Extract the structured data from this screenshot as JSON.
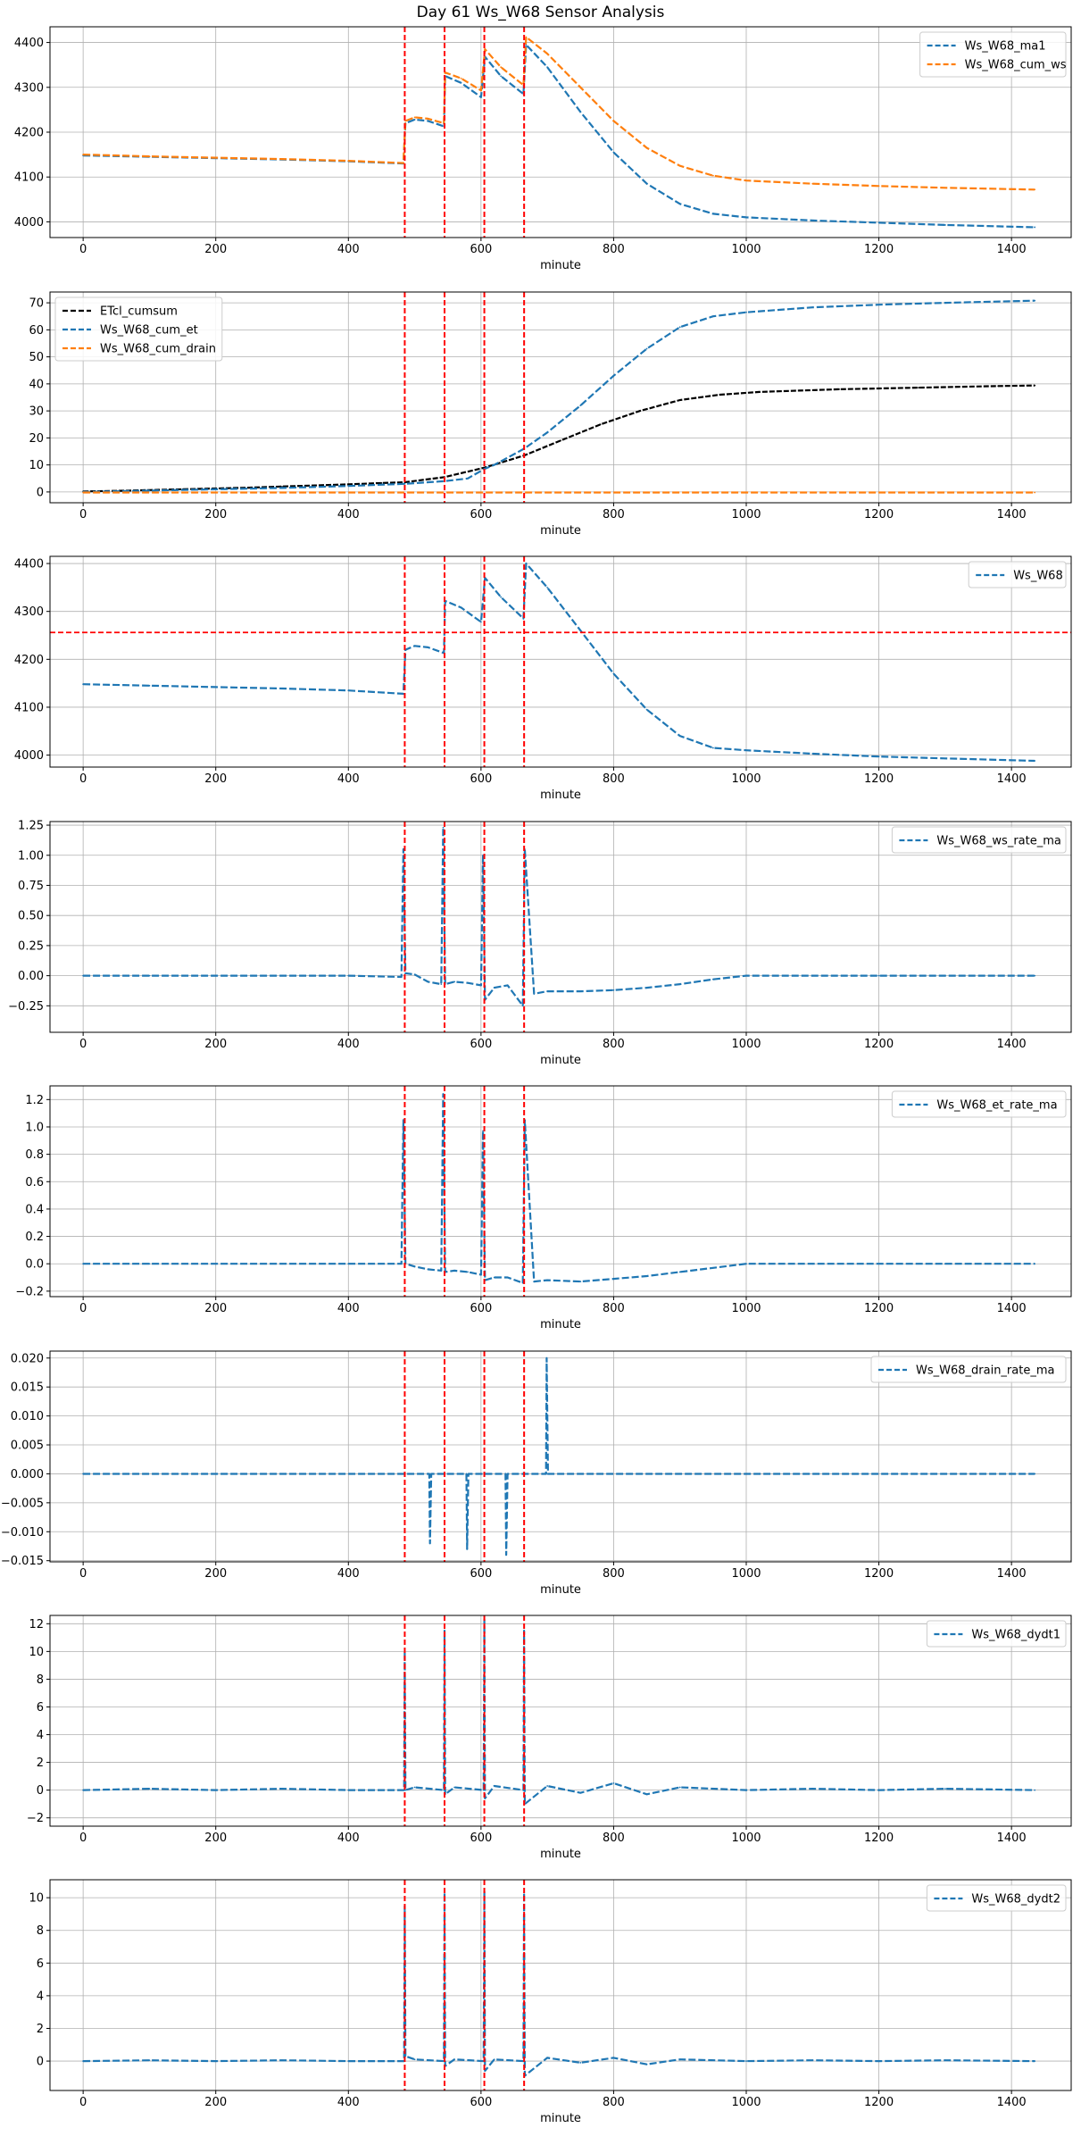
{
  "title": "Day 61 Ws_W68 Sensor Analysis",
  "colors": {
    "blue": "#1f77b4",
    "orange": "#ff7f0e",
    "black": "#000000",
    "event": "#ff0000",
    "grid": "#b0b0b0"
  },
  "chart_data": [
    {
      "type": "line",
      "xlabel": "minute",
      "xlim": [
        -50,
        1490
      ],
      "ylim": [
        3965,
        4435
      ],
      "xticks": [
        0,
        200,
        400,
        600,
        800,
        1000,
        1200,
        1400
      ],
      "yticks": [
        4000,
        4100,
        4200,
        4300,
        4400
      ],
      "ytick_labels": [
        "4000",
        "4100",
        "4200",
        "4300",
        "4400"
      ],
      "legend_position": "top-right",
      "grid": true,
      "event_lines": [
        485,
        545,
        605,
        665
      ],
      "series": [
        {
          "name": "Ws_W68_ma1",
          "color": "#1f77b4",
          "x": [
            0,
            100,
            200,
            300,
            400,
            483,
            486,
            500,
            520,
            544,
            546,
            570,
            600,
            606,
            630,
            664,
            668,
            700,
            750,
            800,
            850,
            900,
            950,
            1000,
            1100,
            1200,
            1300,
            1435
          ],
          "y": [
            4148,
            4145,
            4142,
            4139,
            4135,
            4130,
            4220,
            4228,
            4225,
            4213,
            4325,
            4310,
            4278,
            4368,
            4325,
            4285,
            4395,
            4345,
            4245,
            4155,
            4085,
            4040,
            4018,
            4010,
            4003,
            3998,
            3993,
            3988
          ]
        },
        {
          "name": "Ws_W68_cum_ws",
          "color": "#ff7f0e",
          "x": [
            0,
            100,
            200,
            300,
            400,
            483,
            486,
            500,
            520,
            544,
            546,
            570,
            600,
            606,
            630,
            664,
            668,
            700,
            750,
            800,
            850,
            900,
            950,
            1000,
            1100,
            1200,
            1300,
            1435
          ],
          "y": [
            4150,
            4146,
            4143,
            4140,
            4136,
            4131,
            4225,
            4233,
            4230,
            4220,
            4333,
            4320,
            4293,
            4385,
            4345,
            4305,
            4412,
            4375,
            4300,
            4225,
            4165,
            4125,
            4103,
            4092,
            4085,
            4080,
            4076,
            4072
          ]
        }
      ]
    },
    {
      "type": "line",
      "xlabel": "minute",
      "xlim": [
        -50,
        1490
      ],
      "ylim": [
        -4,
        74
      ],
      "xticks": [
        0,
        200,
        400,
        600,
        800,
        1000,
        1200,
        1400
      ],
      "yticks": [
        0,
        10,
        20,
        30,
        40,
        50,
        60,
        70
      ],
      "ytick_labels": [
        "0",
        "10",
        "20",
        "30",
        "40",
        "50",
        "60",
        "70"
      ],
      "legend_position": "top-left",
      "grid": true,
      "event_lines": [
        485,
        545,
        605,
        665
      ],
      "series": [
        {
          "name": "ETcl_cumsum",
          "color": "#000000",
          "x": [
            0,
            50,
            100,
            150,
            200,
            250,
            300,
            350,
            400,
            450,
            485,
            545,
            605,
            665,
            720,
            780,
            840,
            900,
            960,
            1020,
            1080,
            1140,
            1200,
            1260,
            1320,
            1380,
            1435
          ],
          "y": [
            0.2,
            0.4,
            0.7,
            1.0,
            1.3,
            1.6,
            2.0,
            2.4,
            2.8,
            3.3,
            3.6,
            5.5,
            9,
            13.5,
            19,
            25,
            30,
            34,
            36,
            37,
            37.5,
            38,
            38.3,
            38.6,
            38.9,
            39.2,
            39.4
          ]
        },
        {
          "name": "Ws_W68_cum_et",
          "color": "#1f77b4",
          "x": [
            0,
            100,
            200,
            300,
            400,
            485,
            545,
            580,
            605,
            620,
            665,
            700,
            750,
            800,
            850,
            900,
            950,
            1000,
            1100,
            1200,
            1300,
            1435
          ],
          "y": [
            0,
            0.5,
            1.0,
            1.5,
            2.2,
            3.0,
            4.0,
            5.0,
            8.5,
            10,
            16,
            22,
            32,
            43,
            53,
            61,
            65,
            66.5,
            68.3,
            69.3,
            70,
            70.8
          ]
        },
        {
          "name": "Ws_W68_cum_drain",
          "color": "#ff7f0e",
          "x": [
            0,
            1435
          ],
          "y": [
            -0.2,
            -0.2
          ]
        }
      ]
    },
    {
      "type": "line",
      "xlabel": "minute",
      "xlim": [
        -50,
        1490
      ],
      "ylim": [
        3975,
        4415
      ],
      "xticks": [
        0,
        200,
        400,
        600,
        800,
        1000,
        1200,
        1400
      ],
      "yticks": [
        4000,
        4100,
        4200,
        4300,
        4400
      ],
      "ytick_labels": [
        "4000",
        "4100",
        "4200",
        "4300",
        "4400"
      ],
      "legend_position": "top-right",
      "grid": true,
      "event_lines": [
        485,
        545,
        605,
        665
      ],
      "threshold": 4256,
      "series": [
        {
          "name": "Ws_W68",
          "color": "#1f77b4",
          "x": [
            0,
            100,
            200,
            300,
            400,
            483,
            486,
            500,
            520,
            544,
            546,
            570,
            600,
            606,
            630,
            664,
            668,
            700,
            750,
            800,
            850,
            900,
            950,
            1000,
            1100,
            1200,
            1300,
            1435
          ],
          "y": [
            4148,
            4145,
            4142,
            4139,
            4135,
            4128,
            4220,
            4228,
            4225,
            4213,
            4322,
            4308,
            4278,
            4370,
            4330,
            4285,
            4400,
            4350,
            4260,
            4170,
            4095,
            4040,
            4015,
            4010,
            4003,
            3997,
            3993,
            3988
          ]
        }
      ]
    },
    {
      "type": "line",
      "xlabel": "minute",
      "xlim": [
        -50,
        1490
      ],
      "ylim": [
        -0.47,
        1.28
      ],
      "xticks": [
        0,
        200,
        400,
        600,
        800,
        1000,
        1200,
        1400
      ],
      "yticks": [
        -0.25,
        0.0,
        0.25,
        0.5,
        0.75,
        1.0,
        1.25
      ],
      "ytick_labels": [
        "−0.25",
        "0.00",
        "0.25",
        "0.50",
        "0.75",
        "1.00",
        "1.25"
      ],
      "legend_position": "top-right",
      "grid": true,
      "event_lines": [
        485,
        545,
        605,
        665
      ],
      "series": [
        {
          "name": "Ws_W68_ws_rate_ma",
          "color": "#1f77b4",
          "x": [
            0,
            100,
            200,
            300,
            400,
            480,
            483,
            486,
            500,
            520,
            540,
            543,
            546,
            560,
            580,
            600,
            603,
            606,
            620,
            640,
            663,
            666,
            680,
            700,
            750,
            800,
            850,
            900,
            950,
            1000,
            1100,
            1200,
            1300,
            1435
          ],
          "y": [
            0,
            0,
            0,
            0,
            0,
            -0.01,
            1.05,
            0.02,
            0.01,
            -0.05,
            -0.07,
            1.23,
            -0.07,
            -0.05,
            -0.06,
            -0.08,
            1.0,
            -0.2,
            -0.1,
            -0.08,
            -0.25,
            1.05,
            -0.15,
            -0.13,
            -0.13,
            -0.12,
            -0.1,
            -0.07,
            -0.03,
            0,
            0,
            0,
            0,
            0
          ]
        }
      ]
    },
    {
      "type": "line",
      "xlabel": "minute",
      "xlim": [
        -50,
        1490
      ],
      "ylim": [
        -0.24,
        1.3
      ],
      "xticks": [
        0,
        200,
        400,
        600,
        800,
        1000,
        1200,
        1400
      ],
      "yticks": [
        -0.2,
        0.0,
        0.2,
        0.4,
        0.6,
        0.8,
        1.0,
        1.2
      ],
      "ytick_labels": [
        "−0.2",
        "0.0",
        "0.2",
        "0.4",
        "0.6",
        "0.8",
        "1.0",
        "1.2"
      ],
      "legend_position": "top-right",
      "grid": true,
      "event_lines": [
        485,
        545,
        605,
        665
      ],
      "series": [
        {
          "name": "Ws_W68_et_rate_ma",
          "color": "#1f77b4",
          "x": [
            0,
            100,
            200,
            300,
            400,
            480,
            483,
            486,
            500,
            520,
            540,
            543,
            546,
            560,
            580,
            600,
            603,
            606,
            620,
            640,
            663,
            666,
            680,
            700,
            750,
            800,
            850,
            900,
            950,
            1000,
            1100,
            1200,
            1300,
            1435
          ],
          "y": [
            0,
            0,
            0,
            0,
            0,
            0,
            1.05,
            0,
            -0.02,
            -0.04,
            -0.05,
            1.24,
            -0.06,
            -0.05,
            -0.06,
            -0.08,
            0.97,
            -0.12,
            -0.1,
            -0.1,
            -0.14,
            1.05,
            -0.13,
            -0.12,
            -0.13,
            -0.11,
            -0.09,
            -0.06,
            -0.03,
            0,
            0,
            0,
            0,
            0
          ]
        }
      ]
    },
    {
      "type": "line",
      "xlabel": "minute",
      "xlim": [
        -50,
        1490
      ],
      "ylim": [
        -0.0152,
        0.0212
      ],
      "xticks": [
        0,
        200,
        400,
        600,
        800,
        1000,
        1200,
        1400
      ],
      "yticks": [
        -0.015,
        -0.01,
        -0.005,
        0.0,
        0.005,
        0.01,
        0.015,
        0.02
      ],
      "ytick_labels": [
        "−0.015",
        "−0.010",
        "−0.005",
        "0.000",
        "0.005",
        "0.010",
        "0.015",
        "0.020"
      ],
      "legend_position": "top-right",
      "grid": true,
      "event_lines": [
        485,
        545,
        605,
        665
      ],
      "series": [
        {
          "name": "Ws_W68_drain_rate_ma",
          "color": "#1f77b4",
          "x": [
            0,
            480,
            522,
            523,
            525,
            578,
            579,
            581,
            637,
            638,
            640,
            698,
            699,
            701,
            1435
          ],
          "y": [
            0,
            0,
            0,
            -0.012,
            0,
            0,
            -0.013,
            0,
            0,
            -0.014,
            0,
            0,
            0.02,
            0,
            0
          ]
        }
      ]
    },
    {
      "type": "line",
      "xlabel": "minute",
      "xlim": [
        -50,
        1490
      ],
      "ylim": [
        -2.6,
        12.6
      ],
      "xticks": [
        0,
        200,
        400,
        600,
        800,
        1000,
        1200,
        1400
      ],
      "yticks": [
        -2,
        0,
        2,
        4,
        6,
        8,
        10,
        12
      ],
      "ytick_labels": [
        "−2",
        "0",
        "2",
        "4",
        "6",
        "8",
        "10",
        "12"
      ],
      "legend_position": "top-right",
      "grid": true,
      "event_lines": [
        485,
        545,
        605,
        665
      ],
      "series": [
        {
          "name": "Ws_W68_dydt1",
          "color": "#1f77b4",
          "x": [
            0,
            100,
            200,
            300,
            400,
            484,
            485,
            486,
            500,
            544,
            545,
            546,
            560,
            604,
            605,
            606,
            620,
            664,
            665,
            666,
            700,
            750,
            800,
            850,
            900,
            1000,
            1100,
            1200,
            1300,
            1435
          ],
          "y": [
            0,
            0.1,
            0,
            0.1,
            0,
            0,
            10,
            0,
            0.2,
            0,
            11.5,
            -0.3,
            0.2,
            0,
            12.3,
            -0.6,
            0.3,
            0,
            11.5,
            -1.0,
            0.3,
            -0.2,
            0.5,
            -0.3,
            0.2,
            0,
            0.1,
            0,
            0.1,
            0
          ]
        }
      ]
    },
    {
      "type": "line",
      "xlabel": "minute",
      "xlim": [
        -50,
        1490
      ],
      "ylim": [
        -1.8,
        11.1
      ],
      "xticks": [
        0,
        200,
        400,
        600,
        800,
        1000,
        1200,
        1400
      ],
      "yticks": [
        0,
        2,
        4,
        6,
        8,
        10
      ],
      "ytick_labels": [
        "0",
        "2",
        "4",
        "6",
        "8",
        "10"
      ],
      "legend_position": "top-right",
      "grid": true,
      "event_lines": [
        485,
        545,
        605,
        665
      ],
      "series": [
        {
          "name": "Ws_W68_dydt2",
          "color": "#1f77b4",
          "x": [
            0,
            100,
            200,
            300,
            400,
            484,
            485,
            486,
            500,
            544,
            545,
            546,
            560,
            604,
            605,
            606,
            620,
            664,
            665,
            666,
            700,
            750,
            800,
            850,
            900,
            1000,
            1100,
            1200,
            1300,
            1435
          ],
          "y": [
            0,
            0.05,
            0,
            0.05,
            0,
            0,
            9.5,
            0.3,
            0.1,
            0,
            10.3,
            -0.3,
            0.1,
            0,
            10.4,
            -0.6,
            0.1,
            0,
            10.3,
            -0.9,
            0.2,
            -0.1,
            0.2,
            -0.2,
            0.1,
            0,
            0.05,
            0,
            0.05,
            0
          ]
        }
      ]
    }
  ]
}
